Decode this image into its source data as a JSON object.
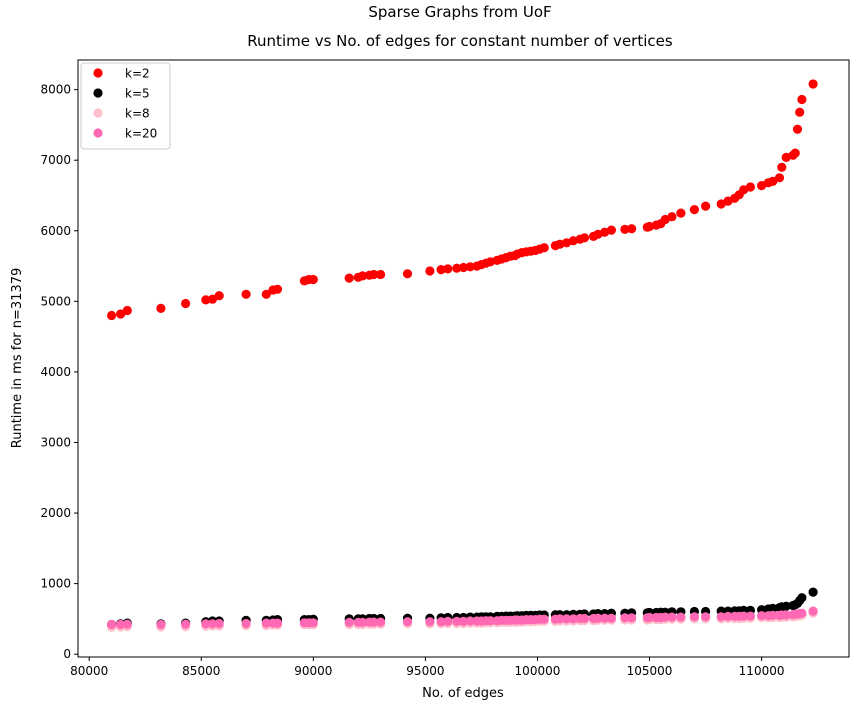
{
  "chart_data": {
    "type": "scatter",
    "title": "Sparse Graphs from UoF",
    "subtitle": "Runtime vs No. of edges for constant number of vertices",
    "xlabel": "No. of edges",
    "ylabel": "Runtime in ms for n=31379",
    "xlim": [
      79500,
      113900
    ],
    "ylim": [
      -40,
      8420
    ],
    "xticks": [
      80000,
      85000,
      90000,
      95000,
      100000,
      105000,
      110000
    ],
    "yticks": [
      0,
      1000,
      2000,
      3000,
      4000,
      5000,
      6000,
      7000,
      8000
    ],
    "grid": false,
    "legend_position": "top-left",
    "x": [
      81000,
      81400,
      81700,
      83200,
      84300,
      85200,
      85500,
      85800,
      87000,
      87900,
      88200,
      88400,
      89600,
      89800,
      90000,
      91600,
      92000,
      92200,
      92500,
      92700,
      93000,
      94200,
      95200,
      95700,
      96000,
      96400,
      96700,
      97000,
      97300,
      97500,
      97700,
      97900,
      98200,
      98400,
      98600,
      98800,
      99000,
      99100,
      99300,
      99500,
      99700,
      99900,
      100100,
      100300,
      100800,
      101000,
      101300,
      101600,
      101900,
      102100,
      102500,
      102700,
      103000,
      103300,
      103900,
      104200,
      104900,
      105000,
      105300,
      105500,
      105700,
      106000,
      106400,
      107000,
      107500,
      108200,
      108500,
      108800,
      109000,
      109200,
      109500,
      110000,
      110300,
      110500,
      110800,
      110900,
      111100,
      111400,
      111500,
      111600,
      111700,
      111800,
      112300
    ],
    "series": [
      {
        "name": "k=2",
        "color": "#ff0000",
        "values": [
          4800,
          4820,
          4870,
          4900,
          4970,
          5020,
          5030,
          5080,
          5100,
          5100,
          5160,
          5170,
          5290,
          5310,
          5310,
          5330,
          5340,
          5360,
          5370,
          5380,
          5380,
          5390,
          5430,
          5450,
          5460,
          5470,
          5480,
          5490,
          5500,
          5520,
          5540,
          5560,
          5580,
          5600,
          5620,
          5640,
          5650,
          5670,
          5690,
          5700,
          5710,
          5720,
          5740,
          5760,
          5790,
          5810,
          5830,
          5860,
          5880,
          5900,
          5920,
          5950,
          5980,
          6010,
          6020,
          6030,
          6050,
          6060,
          6080,
          6100,
          6160,
          6200,
          6250,
          6300,
          6350,
          6380,
          6420,
          6460,
          6510,
          6580,
          6620,
          6640,
          6680,
          6700,
          6750,
          6900,
          7040,
          7070,
          7100,
          7440,
          7680,
          7860,
          8080
        ]
      },
      {
        "name": "k=5",
        "color": "#000000",
        "values": [
          420,
          430,
          440,
          430,
          440,
          460,
          470,
          470,
          480,
          480,
          485,
          490,
          490,
          490,
          495,
          500,
          500,
          500,
          505,
          505,
          505,
          510,
          510,
          515,
          520,
          520,
          520,
          525,
          525,
          530,
          530,
          530,
          535,
          535,
          540,
          540,
          540,
          545,
          545,
          550,
          550,
          550,
          555,
          555,
          560,
          560,
          560,
          565,
          565,
          570,
          570,
          575,
          575,
          580,
          580,
          585,
          585,
          590,
          590,
          595,
          595,
          600,
          600,
          605,
          605,
          610,
          610,
          615,
          615,
          620,
          620,
          630,
          640,
          650,
          660,
          670,
          680,
          690,
          700,
          720,
          760,
          800,
          880
        ]
      },
      {
        "name": "k=8",
        "color": "#ffc0cb",
        "values": [
          380,
          385,
          390,
          385,
          390,
          395,
          400,
          400,
          405,
          405,
          410,
          410,
          415,
          415,
          415,
          420,
          420,
          420,
          425,
          425,
          425,
          430,
          430,
          430,
          435,
          435,
          435,
          440,
          440,
          440,
          445,
          445,
          445,
          450,
          450,
          450,
          455,
          455,
          455,
          460,
          460,
          460,
          465,
          465,
          465,
          470,
          470,
          470,
          475,
          475,
          475,
          480,
          480,
          480,
          485,
          485,
          485,
          490,
          490,
          490,
          495,
          495,
          495,
          500,
          500,
          500,
          505,
          505,
          505,
          510,
          510,
          515,
          515,
          520,
          520,
          525,
          525,
          530,
          535,
          540,
          545,
          550,
          580
        ]
      },
      {
        "name": "k=20",
        "color": "#ff69b4",
        "values": [
          420,
          420,
          425,
          420,
          425,
          430,
          430,
          435,
          435,
          440,
          440,
          440,
          445,
          445,
          445,
          450,
          450,
          450,
          455,
          455,
          455,
          460,
          460,
          460,
          465,
          465,
          465,
          470,
          470,
          470,
          475,
          475,
          475,
          480,
          480,
          480,
          485,
          485,
          485,
          490,
          490,
          490,
          495,
          495,
          495,
          500,
          500,
          500,
          505,
          505,
          505,
          510,
          510,
          510,
          515,
          515,
          515,
          520,
          520,
          520,
          525,
          525,
          525,
          530,
          530,
          530,
          535,
          535,
          535,
          540,
          540,
          545,
          545,
          550,
          550,
          555,
          555,
          560,
          565,
          570,
          575,
          580,
          610
        ]
      }
    ]
  }
}
